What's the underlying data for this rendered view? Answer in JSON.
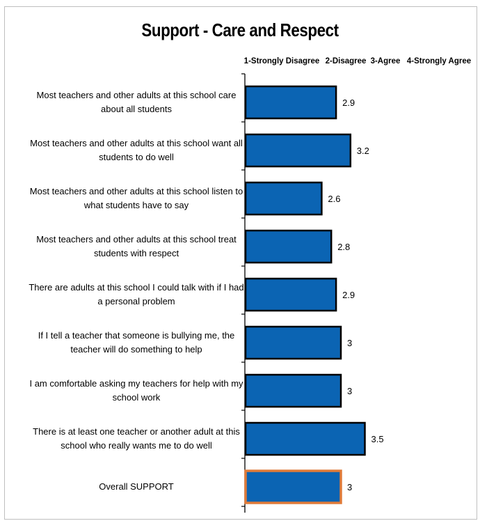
{
  "chart_data": {
    "type": "bar",
    "orientation": "horizontal",
    "title": "Support - Care and Respect",
    "scale_labels": [
      "1-Strongly Disagree",
      "2-Disagree",
      "3-Agree",
      "4-Strongly Agree"
    ],
    "xlim": [
      1,
      4
    ],
    "categories": [
      [
        "Most teachers and other adults at this school care",
        "about all students"
      ],
      [
        "Most teachers and other adults at this school want all",
        "students to do well"
      ],
      [
        "Most teachers and other adults at this school listen to",
        "what students have to say"
      ],
      [
        "Most teachers and other adults at this school treat",
        "students with respect"
      ],
      [
        "There are adults at this school I could talk with if I had",
        "a personal problem"
      ],
      [
        "If I tell a teacher that someone is bullying me, the",
        "teacher will do something to help"
      ],
      [
        "I am comfortable asking my teachers for help with my",
        "school work"
      ],
      [
        "There is at least one teacher or another adult at this",
        "school who really wants me to do well"
      ],
      [
        "Overall SUPPORT"
      ]
    ],
    "values": [
      2.9,
      3.2,
      2.6,
      2.8,
      2.9,
      3,
      3,
      3.5,
      3
    ],
    "value_labels": [
      "2.9",
      "3.2",
      "2.6",
      "2.8",
      "2.9",
      "3",
      "3",
      "3.5",
      "3"
    ],
    "bar_color": "#0b64b3",
    "bar_border": "#000000",
    "highlight_border": "#e07b39",
    "highlight_index": 8,
    "grid": false,
    "legend": "none"
  }
}
